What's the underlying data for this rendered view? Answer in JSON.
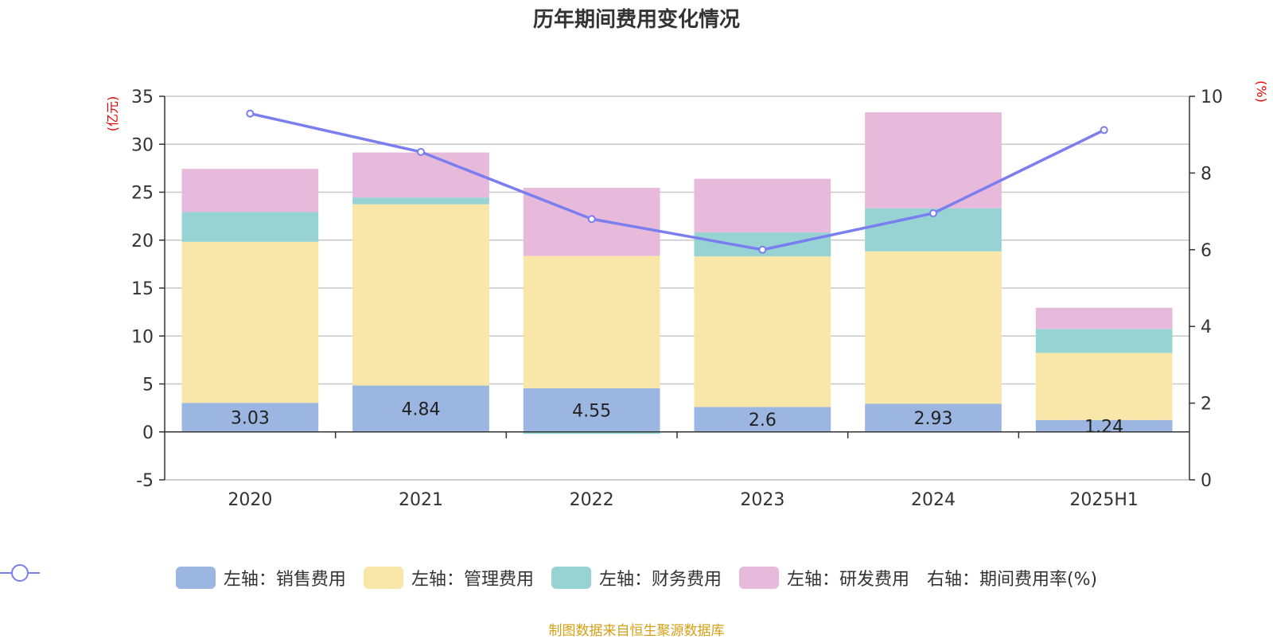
{
  "chart_data": {
    "type": "bar",
    "title": "历年期间费用变化情况",
    "left_axis_unit": "(亿元)",
    "right_axis_unit": "(%)",
    "categories": [
      "2020",
      "2021",
      "2022",
      "2023",
      "2024",
      "2025H1"
    ],
    "left_ylim": [
      -5,
      35
    ],
    "left_ticks": [
      -5,
      0,
      5,
      10,
      15,
      20,
      25,
      30,
      35
    ],
    "right_ylim": [
      0,
      10
    ],
    "right_ticks": [
      0,
      2,
      4,
      6,
      8,
      10
    ],
    "stacked": true,
    "grid": true,
    "legend_position": "bottom",
    "series": [
      {
        "name": "左轴：销售费用",
        "axis": "left",
        "color": "#9bb6e0",
        "values": [
          3.03,
          4.84,
          4.55,
          2.6,
          2.93,
          1.24
        ],
        "labels": [
          "3.03",
          "4.84",
          "4.55",
          "2.6",
          "2.93",
          "1.24"
        ]
      },
      {
        "name": "左轴：管理费用",
        "axis": "left",
        "color": "#f8e7a8",
        "values": [
          16.8,
          18.9,
          13.8,
          15.7,
          15.9,
          7.0
        ]
      },
      {
        "name": "左轴：财务费用",
        "axis": "left",
        "color": "#96d3d2",
        "values": [
          3.1,
          0.7,
          -0.2,
          2.5,
          4.5,
          2.5
        ]
      },
      {
        "name": "左轴：研发费用",
        "axis": "left",
        "color": "#e7b9da",
        "values": [
          4.5,
          4.7,
          7.1,
          5.6,
          10.0,
          2.2
        ]
      },
      {
        "name": "右轴：期间费用率(%)",
        "axis": "right",
        "type": "line",
        "color": "#7a7eef",
        "values": [
          9.55,
          8.55,
          6.8,
          6.0,
          6.95,
          9.12
        ]
      }
    ]
  },
  "source_note": "制图数据来自恒生聚源数据库"
}
